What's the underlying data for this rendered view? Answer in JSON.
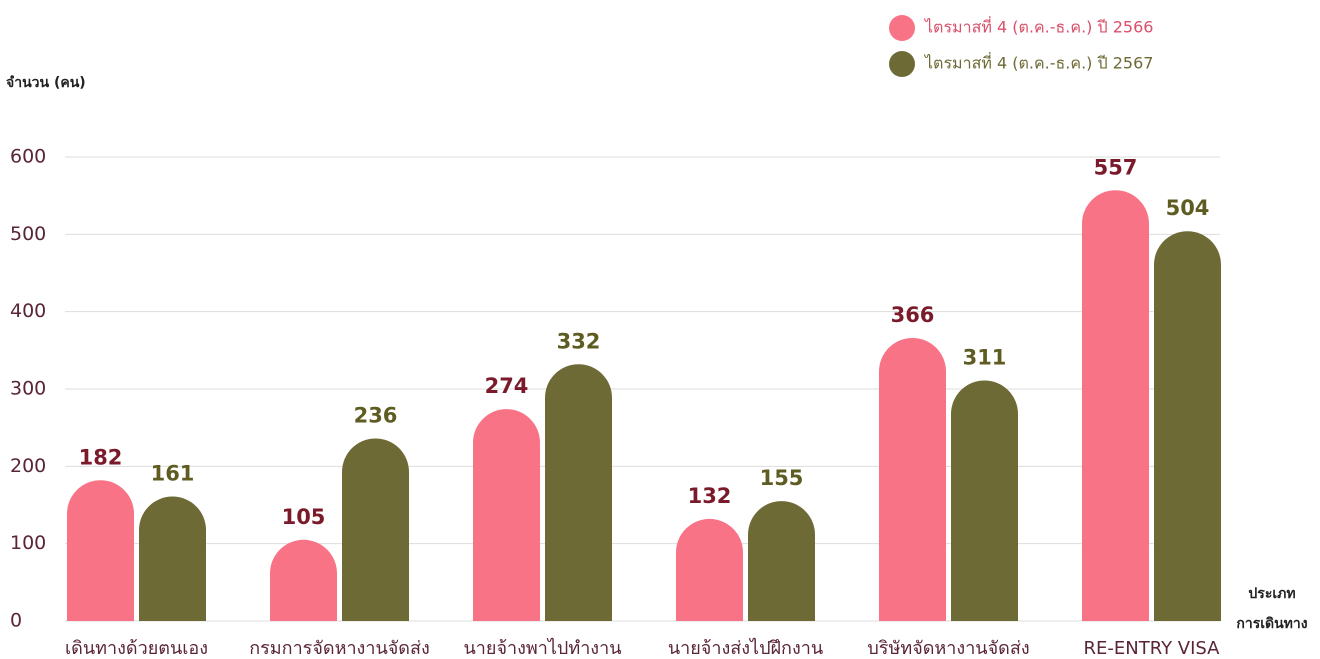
{
  "chart_data": {
    "type": "bar",
    "ylabel": "จำนวน (คน)",
    "xlabel": [
      "ประเภท",
      "การเดินทาง"
    ],
    "categories": [
      "เดินทางด้วยตนเอง",
      "กรมการจัดหางานจัดส่ง",
      "นายจ้างพาไปทำงาน",
      "นายจ้างส่งไปฝึกงาน",
      "บริษัทจัดหางานจัดส่ง",
      "RE-ENTRY VISA"
    ],
    "series": [
      {
        "name": "ไตรมาสที่ 4 (ต.ค.-ธ.ค.) ปี 2566",
        "color": "#f87386",
        "values": [
          182,
          105,
          274,
          132,
          366,
          557
        ]
      },
      {
        "name": "ไตรมาสที่ 4 (ต.ค.-ธ.ค.) ปี 2567",
        "color": "#6e6a35",
        "values": [
          161,
          236,
          332,
          155,
          311,
          504
        ]
      }
    ],
    "ylim": [
      0,
      600
    ],
    "yticks": [
      0,
      100,
      200,
      300,
      400,
      500,
      600
    ],
    "grid": true,
    "legend": "top-right"
  }
}
